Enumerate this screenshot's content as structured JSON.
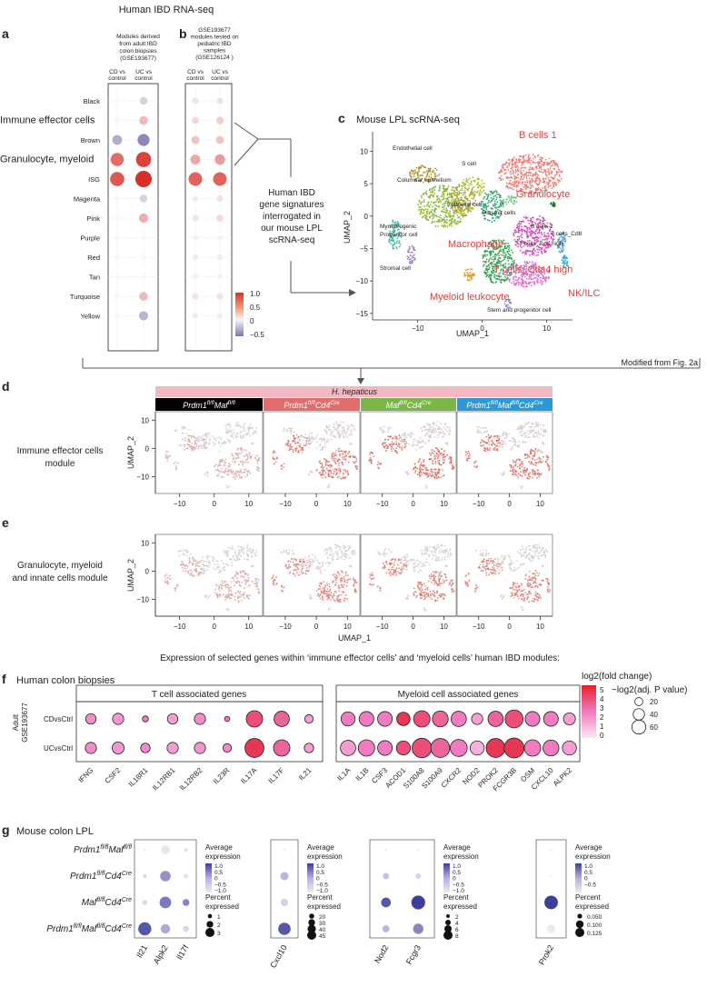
{
  "panel_labels": {
    "a": "a",
    "b": "b",
    "c": "c",
    "d": "d",
    "e": "e",
    "f": "f",
    "g": "g"
  },
  "top_title": "Human IBD RNA-seq",
  "panel_a": {
    "subtitle": [
      "Modules derived",
      "from adult IBD",
      "colon biopsies",
      "(GSE193677)"
    ],
    "cols": [
      "CD vs",
      "control",
      "UC vs",
      "control"
    ]
  },
  "panel_b": {
    "subtitle": [
      "GSE193677",
      "modules tested on",
      "pediatric IBD",
      "samples",
      "(GSE126124 )"
    ],
    "cols": [
      "CD vs",
      "control",
      "UC vs",
      "control"
    ]
  },
  "modules": [
    "Black",
    "Immune effector cells",
    "Brown",
    "Granulocyte, myeloid",
    "ISG",
    "Magenta",
    "Pink",
    "Purple",
    "Red",
    "Tan",
    "Turquoise",
    "Yellow"
  ],
  "ab_legend": {
    "ticks": [
      "1.0",
      "0.5",
      "0",
      "−0.5"
    ],
    "colors": {
      "high": "#d73027",
      "mid": "#f7f7f7",
      "low": "#8073ac"
    }
  },
  "ab_chart": {
    "a_values": [
      [
        0,
        -0.2
      ],
      [
        0,
        0.3
      ],
      [
        -0.4,
        -0.6
      ],
      [
        0.7,
        0.9
      ],
      [
        0.8,
        1.0
      ],
      [
        0,
        -0.2
      ],
      [
        0,
        0.35
      ],
      [
        0,
        0
      ],
      [
        0,
        0
      ],
      [
        0,
        0
      ],
      [
        0,
        0.3
      ],
      [
        0,
        -0.35
      ]
    ],
    "b_values": [
      [
        0.1,
        0.1
      ],
      [
        0.15,
        0.2
      ],
      [
        0.25,
        0.25
      ],
      [
        0.4,
        0.45
      ],
      [
        0.75,
        0.75
      ],
      [
        0.05,
        0.1
      ],
      [
        0.1,
        0.15
      ],
      [
        0.02,
        0.02
      ],
      [
        0.05,
        0.05
      ],
      [
        0.02,
        0.02
      ],
      [
        0.1,
        0.1
      ],
      [
        0.05,
        0.05
      ]
    ]
  },
  "arrow_text": [
    "Human IBD",
    "gene signatures",
    "interrogated in",
    "our mouse LPL",
    "scRNA-seq"
  ],
  "panel_c": {
    "title": "Mouse LPL scRNA-seq",
    "xlabel": "UMAP_1",
    "ylabel": "UMAP_2",
    "xticks": [
      "−10",
      "0",
      "10"
    ],
    "yticks": [
      "10",
      "5",
      "0",
      "−5",
      "−10",
      "−15"
    ],
    "small_labels": [
      "Endothelial cell",
      "S cell",
      "Columnar epithelium",
      "Epithelial cell",
      "Plasma cells",
      "Myofibrogenic",
      "Progenitor cell",
      "B cells 2",
      "T cells_Cd8",
      "T cells_Icos high",
      "Stromal cell",
      "Stem and progenitor cell"
    ],
    "red_labels": [
      "B cells 1",
      "Granulocyte",
      "Macrophage",
      "T cells_Ctla4 high",
      "NK/ILC",
      "Myeloid leukocyte"
    ]
  },
  "modified_note": "Modified from Fig. 2a",
  "panel_de": {
    "header": "H. hepaticus",
    "genotypes": [
      {
        "p1": "Prdm1",
        "s1": "fl/fl",
        "p2": "Maf",
        "s2": "fl/fl",
        "p3": "",
        "s3": "",
        "color": "#000000"
      },
      {
        "p1": "Prdm1",
        "s1": "fl/fl",
        "p2": "Cd4",
        "s2": "Cre",
        "p3": "",
        "s3": "",
        "color": "#e26d6d"
      },
      {
        "p1": "Maf",
        "s1": "fl/fl",
        "p2": "Cd4",
        "s2": "Cre",
        "p3": "",
        "s3": "",
        "color": "#7ab648"
      },
      {
        "p1": "Prdm1",
        "s1": "fl/fl",
        "p2": "Maf",
        "s2": "fl/fl",
        "p3": "Cd4",
        "s3": "Cre",
        "color": "#2a9ad6"
      }
    ],
    "d_label": [
      "Immune effector cells",
      "module"
    ],
    "e_label": [
      "Granulocyte, myeloid",
      "and innate cells module"
    ],
    "yticks": [
      "10",
      "0",
      "−10"
    ],
    "xticks": [
      "−10",
      "0",
      "10"
    ],
    "ylabel": "UMAP_2",
    "xlabel": "UMAP_1",
    "caption": "Expression of selected genes within ‘immune effector cells’ and ‘myeloid cells’ human IBD modules:"
  },
  "panel_f": {
    "title": "Human colon biopsies",
    "t_header": "T cell associated genes",
    "m_header": "Myeloid cell associated genes",
    "side_label": [
      "Adult",
      "GSE193677"
    ],
    "rows": [
      "CDvsCtrl",
      "UCvsCtrl"
    ],
    "t_genes": [
      "IFNG",
      "CSF2",
      "IL18R1",
      "IL12RB1",
      "IL12RB2",
      "IL23R",
      "IL17A",
      "IL17F",
      "IL21"
    ],
    "m_genes": [
      "IL1A",
      "IL1B",
      "CSF3",
      "ACOD1",
      "S100A8",
      "S100A9",
      "CXCR2",
      "NOD2",
      "PROK2",
      "FCGR3B",
      "OSM",
      "CXCL10",
      "ALPK2"
    ],
    "t_fc": [
      [
        2.5,
        2.5
      ],
      [
        2.2,
        2.2
      ],
      [
        3,
        2.5
      ],
      [
        2,
        2
      ],
      [
        2.5,
        2.2
      ],
      [
        3,
        2.5
      ],
      [
        4,
        4.5
      ],
      [
        3.5,
        3.5
      ],
      [
        2,
        2
      ]
    ],
    "t_p": [
      [
        12,
        14
      ],
      [
        14,
        16
      ],
      [
        4,
        10
      ],
      [
        12,
        14
      ],
      [
        14,
        14
      ],
      [
        3,
        8
      ],
      [
        30,
        40
      ],
      [
        26,
        30
      ],
      [
        8,
        10
      ]
    ],
    "m_fc": [
      [
        3,
        2
      ],
      [
        3,
        3
      ],
      [
        3,
        3
      ],
      [
        4.5,
        4
      ],
      [
        4,
        4
      ],
      [
        3.5,
        3.5
      ],
      [
        3,
        3
      ],
      [
        2,
        1.5
      ],
      [
        3.5,
        4.5
      ],
      [
        4,
        4.5
      ],
      [
        3,
        3
      ],
      [
        3,
        3
      ],
      [
        2,
        2
      ]
    ],
    "m_p": [
      [
        22,
        26
      ],
      [
        24,
        30
      ],
      [
        24,
        24
      ],
      [
        20,
        22
      ],
      [
        30,
        42
      ],
      [
        28,
        40
      ],
      [
        26,
        32
      ],
      [
        14,
        22
      ],
      [
        26,
        40
      ],
      [
        36,
        44
      ],
      [
        24,
        30
      ],
      [
        24,
        28
      ],
      [
        16,
        22
      ]
    ],
    "legend_fc_title": "log2(fold change)",
    "legend_fc_ticks": [
      "5",
      "4",
      "3",
      "2",
      "1",
      "0"
    ],
    "legend_p_title": "−log2(adj. P value)",
    "legend_p_values": [
      "20",
      "40",
      "60"
    ]
  },
  "panel_g": {
    "title": "Mouse colon LPL",
    "genotype_rows": [
      {
        "p1": "Prdm1",
        "s1": "fl/fl",
        "p2": "Maf",
        "s2": "fl/fl",
        "p3": "",
        "s3": ""
      },
      {
        "p1": "Prdm1",
        "s1": "fl/fl",
        "p2": "Cd4",
        "s2": "Cre",
        "p3": "",
        "s3": ""
      },
      {
        "p1": "Maf",
        "s1": "fl/fl",
        "p2": "Cd4",
        "s2": "Cre",
        "p3": "",
        "s3": ""
      },
      {
        "p1": "Prdm1",
        "s1": "fl/fl",
        "p2": "Maf",
        "s2": "fl/fl",
        "p3": "Cd4",
        "s3": "Cre"
      }
    ],
    "avg_title": [
      "Average",
      "expression"
    ],
    "pct_title": [
      "Percent",
      "expressed"
    ],
    "groups": [
      {
        "genes": [
          "Il21",
          "Alpk2",
          "Il17f"
        ],
        "avg": [
          [
            null,
            -0.8,
            null
          ],
          [
            -0.3,
            0.5,
            -0.6
          ],
          [
            -0.4,
            0.7,
            0.6
          ],
          [
            1.0,
            0.3,
            -0.2
          ]
        ],
        "pct": [
          [
            0,
            1.8,
            0.3
          ],
          [
            0.5,
            2.3,
            0.6
          ],
          [
            0.8,
            2.6,
            1.3
          ],
          [
            3,
            2,
            1
          ]
        ],
        "avg_ticks": [
          "1.0",
          "0.5",
          "0",
          "−0.5",
          "−1.0"
        ],
        "pct_ticks": [
          "1",
          "2",
          "3"
        ],
        "pct_vals": [
          1,
          2,
          3
        ]
      },
      {
        "genes": [
          "Cxcl10"
        ],
        "avg": [
          [
            null
          ],
          [
            0.2
          ],
          [
            -0.1
          ],
          [
            1.0
          ]
        ],
        "pct": [
          [
            0
          ],
          [
            25
          ],
          [
            22
          ],
          [
            42
          ]
        ],
        "avg_ticks": [
          "1.0",
          "0.5",
          "0",
          "−0.5",
          "−1.0"
        ],
        "pct_ticks": [
          "20",
          "30",
          "40",
          "45"
        ],
        "pct_vals": [
          20,
          30,
          40,
          45
        ]
      },
      {
        "genes": [
          "Nod2",
          "Fcgr3"
        ],
        "avg": [
          [
            null,
            null
          ],
          [
            0.1,
            -0.2
          ],
          [
            1.0,
            1.2
          ],
          [
            0.2,
            0.6
          ]
        ],
        "pct": [
          [
            0,
            0
          ],
          [
            3,
            2.5
          ],
          [
            5.5,
            8.5
          ],
          [
            3.5,
            6
          ]
        ],
        "avg_ticks": [
          "1.0",
          "0.5",
          "0",
          "−0.5",
          "−1.0"
        ],
        "pct_ticks": [
          "2",
          "4",
          "6",
          "8"
        ],
        "pct_vals": [
          2,
          4,
          6,
          8
        ]
      },
      {
        "genes": [
          "Prok2"
        ],
        "avg": [
          [
            null
          ],
          [
            null
          ],
          [
            1.3
          ],
          [
            -0.9
          ]
        ],
        "pct": [
          [
            0
          ],
          [
            0
          ],
          [
            0.13
          ],
          [
            0.07
          ]
        ],
        "avg_ticks": [
          "1.0",
          "0.5",
          "0",
          "−0.5"
        ],
        "pct_ticks": [
          "0.050",
          "0.100",
          "0.125"
        ],
        "pct_vals": [
          0.05,
          0.1,
          0.125
        ]
      }
    ]
  }
}
